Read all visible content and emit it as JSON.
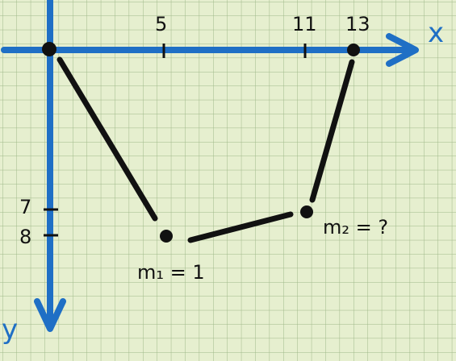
{
  "colors": {
    "background": "#e6efcf",
    "grid": "#9fb889",
    "axis": "#1f6fc5",
    "ink": "#111111"
  },
  "axes": {
    "x_label": "x",
    "y_label": "y",
    "x_ticks": [
      "5",
      "11",
      "13"
    ],
    "y_ticks": [
      "7",
      "8"
    ]
  },
  "labels": {
    "m1": "m₁ = 1",
    "m2": "m₂ = ?"
  }
}
